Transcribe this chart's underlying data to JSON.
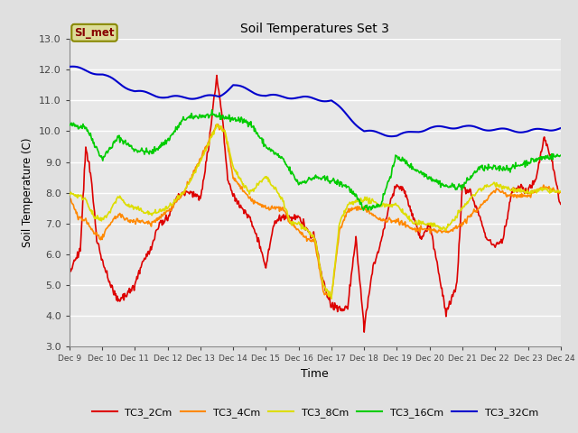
{
  "title": "Soil Temperatures Set 3",
  "xlabel": "Time",
  "ylabel": "Soil Temperature (C)",
  "ylim": [
    3.0,
    13.0
  ],
  "yticks": [
    3.0,
    4.0,
    5.0,
    6.0,
    7.0,
    8.0,
    9.0,
    10.0,
    11.0,
    12.0,
    13.0
  ],
  "xlim": [
    0,
    360
  ],
  "xtick_positions": [
    0,
    24,
    48,
    72,
    96,
    120,
    144,
    168,
    192,
    216,
    240,
    264,
    288,
    312,
    336,
    360
  ],
  "xtick_labels": [
    "Dec 9",
    "Dec 10",
    "Dec 11",
    "Dec 12",
    "Dec 13",
    "Dec 14",
    "Dec 15",
    "Dec 16",
    "Dec 17",
    "Dec 18",
    "Dec 19",
    "Dec 20",
    "Dec 21",
    "Dec 22",
    "Dec 23",
    "Dec 24"
  ],
  "bg_color": "#e0e0e0",
  "plot_bg_color": "#e8e8e8",
  "grid_color": "#ffffff",
  "series_colors": {
    "TC3_2Cm": "#dd0000",
    "TC3_4Cm": "#ff8800",
    "TC3_8Cm": "#dddd00",
    "TC3_16Cm": "#00cc00",
    "TC3_32Cm": "#0000cc"
  },
  "si_met_label": "SI_met",
  "si_met_color": "#880000",
  "si_met_bg": "#dddd99",
  "si_met_border": "#888800"
}
